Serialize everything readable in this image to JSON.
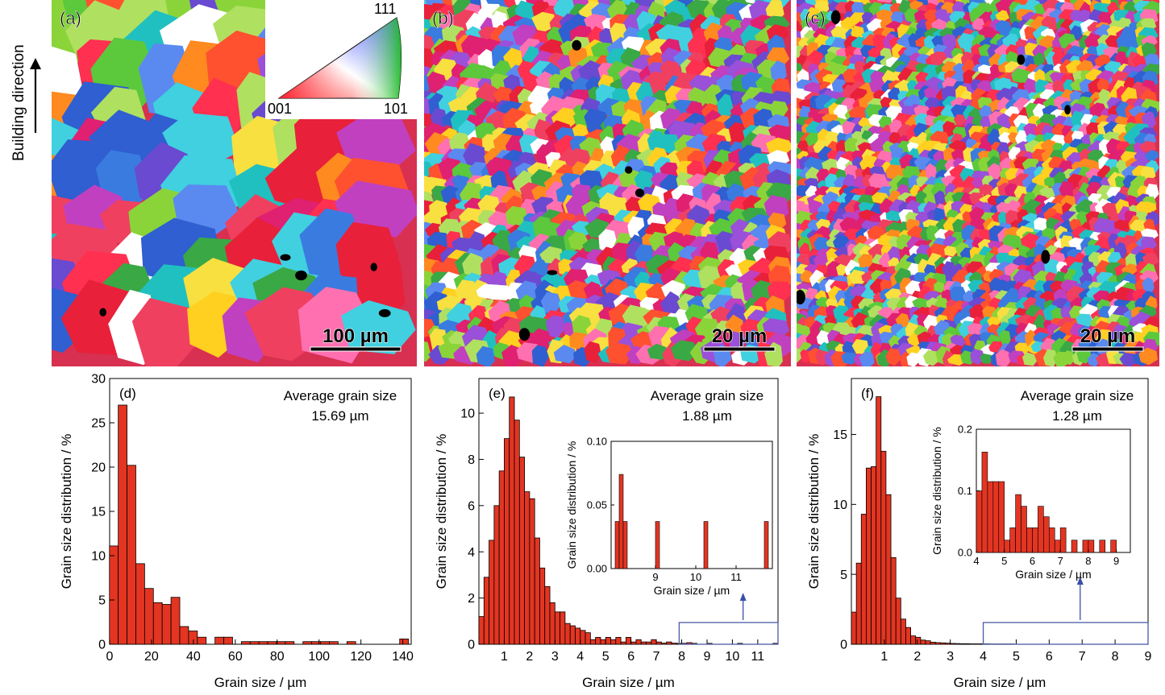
{
  "building_direction_label": "Building direction",
  "maps": [
    {
      "label": "(a)",
      "scale_bar": "100 µm"
    },
    {
      "label": "(b)",
      "scale_bar": "20 µm"
    },
    {
      "label": "(c)",
      "scale_bar": "20 µm"
    }
  ],
  "ipf_legend": {
    "top": "111",
    "left": "001",
    "right": "101"
  },
  "colors": {
    "bar_fill": "#e33522",
    "bar_stroke": "#000000",
    "inset_box": "#4a5aa8",
    "arrow": "#3a4ea8"
  },
  "chart_data": [
    {
      "type": "bar",
      "panel_label": "(d)",
      "xlabel": "Grain size / µm",
      "ylabel": "Grain size distribution / %",
      "annotation": [
        "Average grain size",
        "15.69 µm"
      ],
      "xlim": [
        0,
        144
      ],
      "ylim": [
        0,
        30
      ],
      "xticks": [
        0,
        20,
        40,
        60,
        80,
        100,
        120,
        140
      ],
      "yticks": [
        0,
        5,
        10,
        15,
        20,
        25,
        30
      ],
      "bin_width": 4.2,
      "x": [
        2,
        6.2,
        10.4,
        14.6,
        18.8,
        23,
        27.2,
        31.4,
        35.6,
        39.8,
        44,
        48.2,
        52.4,
        56.6,
        60.8,
        65,
        69.2,
        73.4,
        77.6,
        81.8,
        86,
        90.2,
        94.4,
        98.6,
        102.8,
        107,
        111.2,
        115.4,
        119.6,
        123.8,
        128,
        132.2,
        136.4,
        140.6
      ],
      "values": [
        11.1,
        27.0,
        20.2,
        9.1,
        6.3,
        4.7,
        4.5,
        5.3,
        2.0,
        1.5,
        0.8,
        0,
        0.8,
        0.8,
        0,
        0.3,
        0.3,
        0.3,
        0.3,
        0.3,
        0.3,
        0,
        0.3,
        0.3,
        0.3,
        0.3,
        0,
        0.3,
        0,
        0,
        0,
        0,
        0,
        0.6
      ]
    },
    {
      "type": "bar",
      "panel_label": "(e)",
      "xlabel": "Grain size / µm",
      "ylabel": "Grain size distribution / %",
      "annotation": [
        "Average grain size",
        "1.88 µm"
      ],
      "xlim": [
        0,
        11.8
      ],
      "ylim": [
        0,
        11.5
      ],
      "xticks": [
        1,
        2,
        3,
        4,
        5,
        6,
        7,
        8,
        9,
        10,
        11
      ],
      "yticks": [
        0,
        2,
        4,
        6,
        8,
        10
      ],
      "bin_width": 0.2,
      "x": [
        0.1,
        0.3,
        0.5,
        0.7,
        0.9,
        1.1,
        1.3,
        1.5,
        1.7,
        1.9,
        2.1,
        2.3,
        2.5,
        2.7,
        2.9,
        3.1,
        3.3,
        3.5,
        3.7,
        3.9,
        4.1,
        4.3,
        4.5,
        4.7,
        4.9,
        5.1,
        5.3,
        5.5,
        5.7,
        5.9,
        6.1,
        6.3,
        6.5,
        6.7,
        6.9,
        7.1,
        7.3,
        7.5,
        7.7,
        7.9,
        8.1,
        8.3,
        8.5,
        8.7,
        8.9,
        9.1,
        9.3,
        9.5,
        9.7,
        9.9,
        10.1,
        10.3,
        10.5,
        10.7,
        10.9,
        11.1,
        11.3,
        11.5,
        11.7
      ],
      "values": [
        1.2,
        2.9,
        4.5,
        6.0,
        7.5,
        8.9,
        10.7,
        9.7,
        8.1,
        6.6,
        6.3,
        4.6,
        3.3,
        2.5,
        1.8,
        1.4,
        1.4,
        0.9,
        0.8,
        0.7,
        0.6,
        0.5,
        0.2,
        0.3,
        0.2,
        0.3,
        0.2,
        0.3,
        0.1,
        0.3,
        0.1,
        0.2,
        0.1,
        0.1,
        0.2,
        0.1,
        0.05,
        0.1,
        0.05,
        0.04,
        0.04,
        0.07,
        0.04,
        0,
        0,
        0.04,
        0,
        0,
        0,
        0,
        0,
        0.04,
        0,
        0,
        0,
        0,
        0,
        0,
        0.04
      ],
      "inset": {
        "ylabel": "Grain size distribution / %",
        "xlabel": "Grain size / µm",
        "xlim": [
          7.9,
          11.9
        ],
        "ylim": [
          0,
          0.1
        ],
        "xticks": [
          9,
          10,
          11
        ],
        "xticklabels": [
          "9",
          "10",
          "11"
        ],
        "yticks": [
          0,
          0.05,
          0.1
        ],
        "yticklabels": [
          "0.00",
          "0.05",
          "0.10"
        ],
        "bin_width": 0.1,
        "x": [
          8.05,
          8.15,
          8.25,
          9.05,
          10.25,
          11.75
        ],
        "values": [
          0.037,
          0.074,
          0.037,
          0.037,
          0.037,
          0.037
        ]
      }
    },
    {
      "type": "bar",
      "panel_label": "(f)",
      "xlabel": "Grain size / µm",
      "ylabel": "Grain size distribution / %",
      "annotation": [
        "Average grain size",
        "1.28 µm"
      ],
      "xlim": [
        0,
        9
      ],
      "ylim": [
        0,
        19
      ],
      "xticks": [
        1,
        2,
        3,
        4,
        5,
        6,
        7,
        8,
        9
      ],
      "yticks": [
        0,
        5,
        10,
        15
      ],
      "bin_width": 0.15,
      "x": [
        0.075,
        0.225,
        0.375,
        0.525,
        0.675,
        0.825,
        0.975,
        1.125,
        1.275,
        1.425,
        1.575,
        1.725,
        1.875,
        2.025,
        2.175,
        2.325,
        2.475,
        2.625,
        2.775,
        2.925,
        3.075,
        3.225,
        3.375,
        3.525,
        3.675,
        3.825,
        3.975,
        4.125,
        4.275,
        4.425,
        4.575,
        4.725,
        4.875
      ],
      "values": [
        2.3,
        5.8,
        9.3,
        12.6,
        12.7,
        17.7,
        13.8,
        10.7,
        6.2,
        3.3,
        1.8,
        1.2,
        0.6,
        0.5,
        0.3,
        0.25,
        0.15,
        0.12,
        0.1,
        0.08,
        0.06,
        0.05,
        0.04,
        0.04,
        0.03,
        0.03,
        0.03,
        0.03,
        0.02,
        0.02,
        0.02,
        0.02,
        0.02
      ],
      "inset": {
        "ylabel": "Grain size distribution / %",
        "xlabel": "Grain size / µm",
        "xlim": [
          4,
          9.5
        ],
        "ylim": [
          0,
          0.2
        ],
        "xticks": [
          4,
          5,
          6,
          7,
          8,
          9
        ],
        "xticklabels": [
          "4",
          "5",
          "6",
          "7",
          "8",
          "9"
        ],
        "yticks": [
          0,
          0.1,
          0.2
        ],
        "yticklabels": [
          "0.0",
          "0.1",
          "0.2"
        ],
        "bin_width": 0.2,
        "x": [
          4.1,
          4.3,
          4.5,
          4.7,
          4.9,
          5.1,
          5.3,
          5.5,
          5.7,
          5.9,
          6.1,
          6.3,
          6.5,
          6.7,
          6.9,
          7.1,
          7.3,
          7.5,
          7.7,
          7.9,
          8.1,
          8.3,
          8.5,
          8.7,
          8.9,
          9.1
        ],
        "values": [
          0.1,
          0.163,
          0.115,
          0.115,
          0.115,
          0.02,
          0.04,
          0.094,
          0.075,
          0.04,
          0.04,
          0.075,
          0.058,
          0.04,
          0.02,
          0.04,
          0,
          0.02,
          0,
          0.02,
          0.02,
          0,
          0.02,
          0,
          0.02,
          0
        ]
      }
    }
  ]
}
